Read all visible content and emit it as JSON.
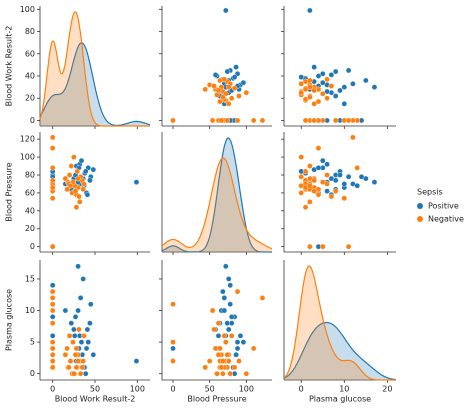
{
  "chart_data": {
    "type": "pairplot",
    "legend_title": "Sepsis",
    "axes": [
      {
        "label": "Blood Work Result-2",
        "xlim": [
          -15,
          115
        ],
        "xticks": [
          0,
          50,
          100
        ],
        "ylim": [
          -5,
          103
        ],
        "yticks": [
          0,
          20,
          40,
          60,
          80,
          100
        ]
      },
      {
        "label": "Blood Pressure",
        "xlim": [
          -15,
          135
        ],
        "xticks": [
          0,
          50,
          100
        ],
        "ylim": [
          -6,
          128
        ],
        "yticks": [
          0,
          20,
          40,
          60,
          80,
          100,
          120
        ]
      },
      {
        "label": "Plasma glucose",
        "xlim": [
          -4,
          22
        ],
        "xticks": [
          0,
          10,
          20
        ],
        "ylim": [
          -1,
          18
        ],
        "yticks": [
          0,
          5,
          10,
          15
        ]
      }
    ],
    "series": [
      {
        "name": "Positive",
        "color": "#1f77b4",
        "values": [
          [
            0,
            0,
            35,
            30,
            42,
            25,
            33,
            0,
            40,
            28,
            45,
            38,
            0,
            32,
            22,
            36,
            48,
            30,
            0,
            41,
            27,
            34,
            99,
            15,
            39,
            26,
            44,
            0,
            31,
            37
          ],
          [
            72,
            80,
            74,
            66,
            88,
            76,
            70,
            84,
            60,
            90,
            78,
            82,
            68,
            92,
            64,
            76,
            86,
            72,
            0,
            58,
            80,
            96,
            72,
            70,
            84,
            62,
            74,
            78,
            88,
            68
          ],
          [
            6,
            8,
            3,
            10,
            5,
            7,
            12,
            9,
            4,
            2,
            11,
            1,
            13,
            6,
            8,
            15,
            3,
            17,
            4,
            7,
            9,
            5,
            2,
            10,
            0,
            6,
            8,
            14,
            4,
            1
          ]
        ]
      },
      {
        "name": "Negative",
        "color": "#ff7f0e",
        "values": [
          [
            0,
            0,
            23,
            30,
            18,
            0,
            0,
            28,
            35,
            20,
            0,
            32,
            26,
            15,
            0,
            29,
            36,
            0,
            24,
            19,
            0,
            33,
            27,
            0,
            22,
            31,
            0,
            25,
            0,
            30,
            17,
            0,
            28,
            37,
            21
          ],
          [
            64,
            70,
            60,
            66,
            72,
            0,
            0,
            58,
            74,
            80,
            62,
            50,
            68,
            76,
            88,
            84,
            64,
            54,
            72,
            70,
            110,
            78,
            62,
            122,
            90,
            56,
            66,
            100,
            0,
            76,
            64,
            74,
            44,
            70,
            68
          ],
          [
            1,
            2,
            0,
            3,
            1,
            2,
            5,
            4,
            1,
            6,
            8,
            2,
            0,
            3,
            13,
            1,
            2,
            10,
            5,
            1,
            4,
            0,
            3,
            12,
            2,
            7,
            1,
            0,
            11,
            2,
            4,
            3,
            1,
            6,
            2
          ]
        ]
      }
    ]
  }
}
